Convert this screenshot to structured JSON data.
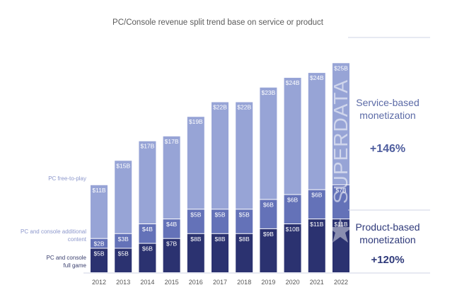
{
  "chart_data": {
    "type": "bar",
    "stacked": true,
    "title": "PC/Console revenue split trend base on service or product",
    "categories": [
      "2012",
      "2013",
      "2014",
      "2015",
      "2016",
      "2017",
      "2018",
      "2019",
      "2020",
      "2021",
      "2022"
    ],
    "series": [
      {
        "name": "PC and console full game",
        "color": "#2b3270",
        "values": [
          5,
          5,
          6,
          7,
          8,
          8,
          8,
          9,
          10,
          11,
          11
        ]
      },
      {
        "name": "PC and console additional content",
        "color": "#6472b8",
        "values": [
          2,
          3,
          4,
          4,
          5,
          5,
          5,
          6,
          6,
          6,
          7
        ]
      },
      {
        "name": "PC free-to-play",
        "color": "#97a4d6",
        "values": [
          11,
          15,
          17,
          17,
          19,
          22,
          22,
          23,
          24,
          24,
          25
        ]
      }
    ],
    "unit_prefix": "$",
    "unit_suffix": "B",
    "ylim": [
      0,
      48
    ],
    "annotations": {
      "service_title_line1": "Service-based",
      "service_title_line2": "monetization",
      "service_pct": "+146%",
      "product_title_line1": "Product-based",
      "product_title_line2": "monetization",
      "product_pct": "+120%"
    },
    "legend_labels": {
      "free_to_play": "PC free-to-play",
      "additional_line1": "PC and console additional",
      "additional_line2": "content",
      "full_game_line1": "PC and console",
      "full_game_line2": "full game"
    },
    "watermark": "SUPERDATA"
  }
}
